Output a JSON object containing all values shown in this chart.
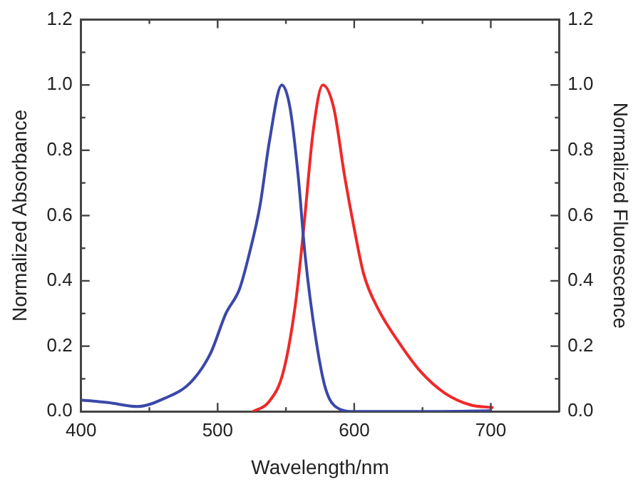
{
  "chart_data": {
    "type": "line",
    "xlabel": "Wavelength/nm",
    "ylabel": "Normalized Absorbance",
    "y2label": "Normalized Fluorescence",
    "xlim": [
      400,
      750
    ],
    "xticks": [
      400,
      {
        "value": 450,
        "label": null
      },
      500,
      {
        "value": 550,
        "label": null
      },
      600,
      {
        "value": 650,
        "label": null
      },
      700
    ],
    "ylim": [
      0,
      1.2
    ],
    "yticks": [
      {
        "value": 0,
        "label": "0.0"
      },
      {
        "value": 0.1,
        "label": null
      },
      {
        "value": 0.2,
        "label": "0.2"
      },
      {
        "value": 0.3,
        "label": null
      },
      {
        "value": 0.4,
        "label": "0.4"
      },
      {
        "value": 0.5,
        "label": null
      },
      {
        "value": 0.6,
        "label": "0.6"
      },
      {
        "value": 0.7,
        "label": null
      },
      {
        "value": 0.8,
        "label": "0.8"
      },
      {
        "value": 0.9,
        "label": null
      },
      {
        "value": 1.0,
        "label": "1.0"
      },
      {
        "value": 1.1,
        "label": null
      },
      {
        "value": 1.2,
        "label": "1.2"
      }
    ],
    "y2lim": [
      0,
      1.2
    ],
    "y2ticks": [
      {
        "value": 0,
        "label": "0.0"
      },
      {
        "value": 0.1,
        "label": null
      },
      {
        "value": 0.2,
        "label": "0.2"
      },
      {
        "value": 0.3,
        "label": null
      },
      {
        "value": 0.4,
        "label": "0.4"
      },
      {
        "value": 0.5,
        "label": null
      },
      {
        "value": 0.6,
        "label": "0.6"
      },
      {
        "value": 0.7,
        "label": null
      },
      {
        "value": 0.8,
        "label": "0.8"
      },
      {
        "value": 0.9,
        "label": null
      },
      {
        "value": 1.0,
        "label": "1.0"
      },
      {
        "value": 1.1,
        "label": null
      },
      {
        "value": 1.2,
        "label": "1.2"
      }
    ],
    "grid": false,
    "legend": false,
    "marker": "none",
    "line_style": "solid",
    "series": [
      {
        "color": "#3a48a8",
        "x": [
          400,
          420,
          441,
          461,
          480,
          495,
          506,
          516,
          523,
          531,
          538,
          547,
          553,
          559,
          564,
          572,
          579,
          588,
          600,
          650,
          700
        ],
        "values": [
          0.035,
          0.027,
          0.015,
          0.04,
          0.088,
          0.18,
          0.3,
          0.375,
          0.48,
          0.63,
          0.83,
          1.0,
          0.93,
          0.72,
          0.48,
          0.22,
          0.07,
          0.01,
          0.0,
          0.0,
          0.002
        ]
      },
      {
        "color": "#f02828",
        "axis": "y2",
        "x": [
          526,
          537,
          548,
          557,
          563,
          570,
          577,
          585,
          593,
          600,
          607,
          618,
          633,
          648,
          666,
          685,
          701
        ],
        "values": [
          0,
          0.027,
          0.12,
          0.33,
          0.56,
          0.86,
          1.0,
          0.93,
          0.72,
          0.56,
          0.42,
          0.31,
          0.21,
          0.125,
          0.057,
          0.02,
          0.012
        ]
      }
    ]
  }
}
